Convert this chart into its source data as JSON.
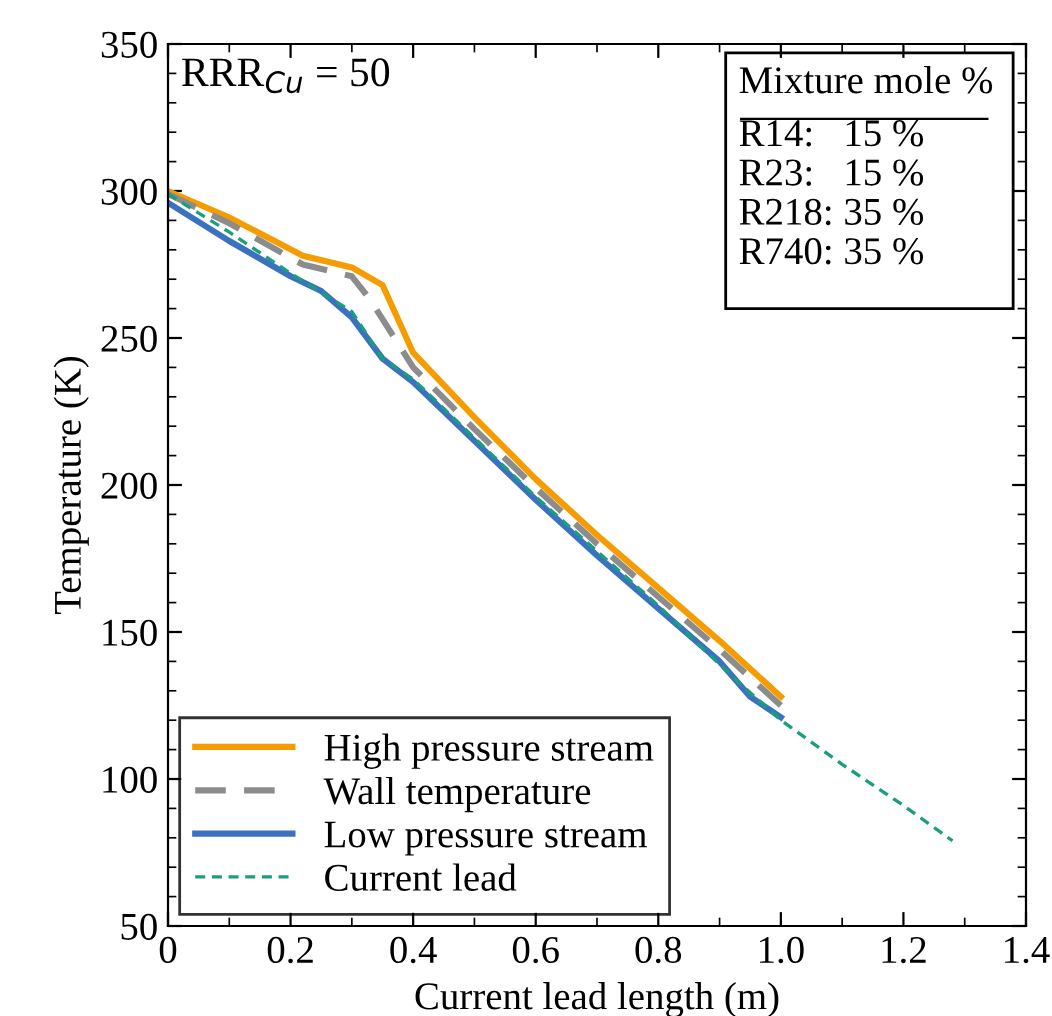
{
  "chart_data": {
    "type": "line",
    "xlabel": "Current lead length (m)",
    "ylabel": "Temperature (K)",
    "xlim": [
      0,
      1.4
    ],
    "xticks": [
      {
        "value": 0,
        "label": "0"
      },
      0.2,
      0.4,
      0.6,
      0.8,
      {
        "value": 1.0,
        "label": "1.0"
      },
      1.2,
      1.4
    ],
    "ylim": [
      50,
      350
    ],
    "yticks": [
      50,
      100,
      150,
      200,
      250,
      300,
      350
    ],
    "grid": false,
    "legend": "bottom left",
    "annotations": [
      "RRR$_{Cu}$ = 50",
      "Mixture mole %",
      "R14:   15 %",
      "R23:   15 %",
      "R218: 35 %",
      "R740: 35 %"
    ],
    "series": [
      {
        "name": "High pressure stream",
        "color": "#f59c00",
        "line_style": "solid",
        "x": [
          0,
          0.1,
          0.22,
          0.3,
          0.35,
          0.4,
          0.5,
          0.6,
          0.7,
          0.8,
          0.9,
          1.0
        ],
        "values": [
          300,
          291,
          278,
          274,
          268,
          245,
          223,
          202,
          183,
          165,
          147,
          128
        ]
      },
      {
        "name": "Wall temperature",
        "color": "#8c8c8c",
        "line_style": "dashed",
        "x": [
          0,
          0.1,
          0.22,
          0.3,
          0.33,
          0.4,
          0.5,
          0.6,
          0.7,
          0.8,
          0.9,
          1.0
        ],
        "values": [
          299,
          289,
          275,
          271,
          263,
          240,
          219,
          199,
          180,
          162,
          144,
          125
        ]
      },
      {
        "name": "Low pressure stream",
        "color": "#3a72c0",
        "line_style": "solid",
        "x": [
          0,
          0.1,
          0.2,
          0.25,
          0.3,
          0.35,
          0.4,
          0.5,
          0.6,
          0.7,
          0.8,
          0.9,
          0.95,
          1.0
        ],
        "values": [
          296,
          283,
          271,
          266,
          257,
          243,
          235,
          215,
          195,
          176,
          158,
          140,
          128,
          121
        ]
      },
      {
        "name": "Current lead",
        "color": "#1a9e80",
        "line_style": "dotted",
        "x": [
          0,
          0.1,
          0.2,
          0.3,
          0.35,
          0.4,
          0.6,
          0.8,
          0.92,
          1.0,
          1.1,
          1.2,
          1.28
        ],
        "values": [
          299,
          286,
          272,
          259,
          243,
          236,
          196,
          159,
          135,
          120,
          105,
          91,
          79
        ]
      }
    ]
  }
}
